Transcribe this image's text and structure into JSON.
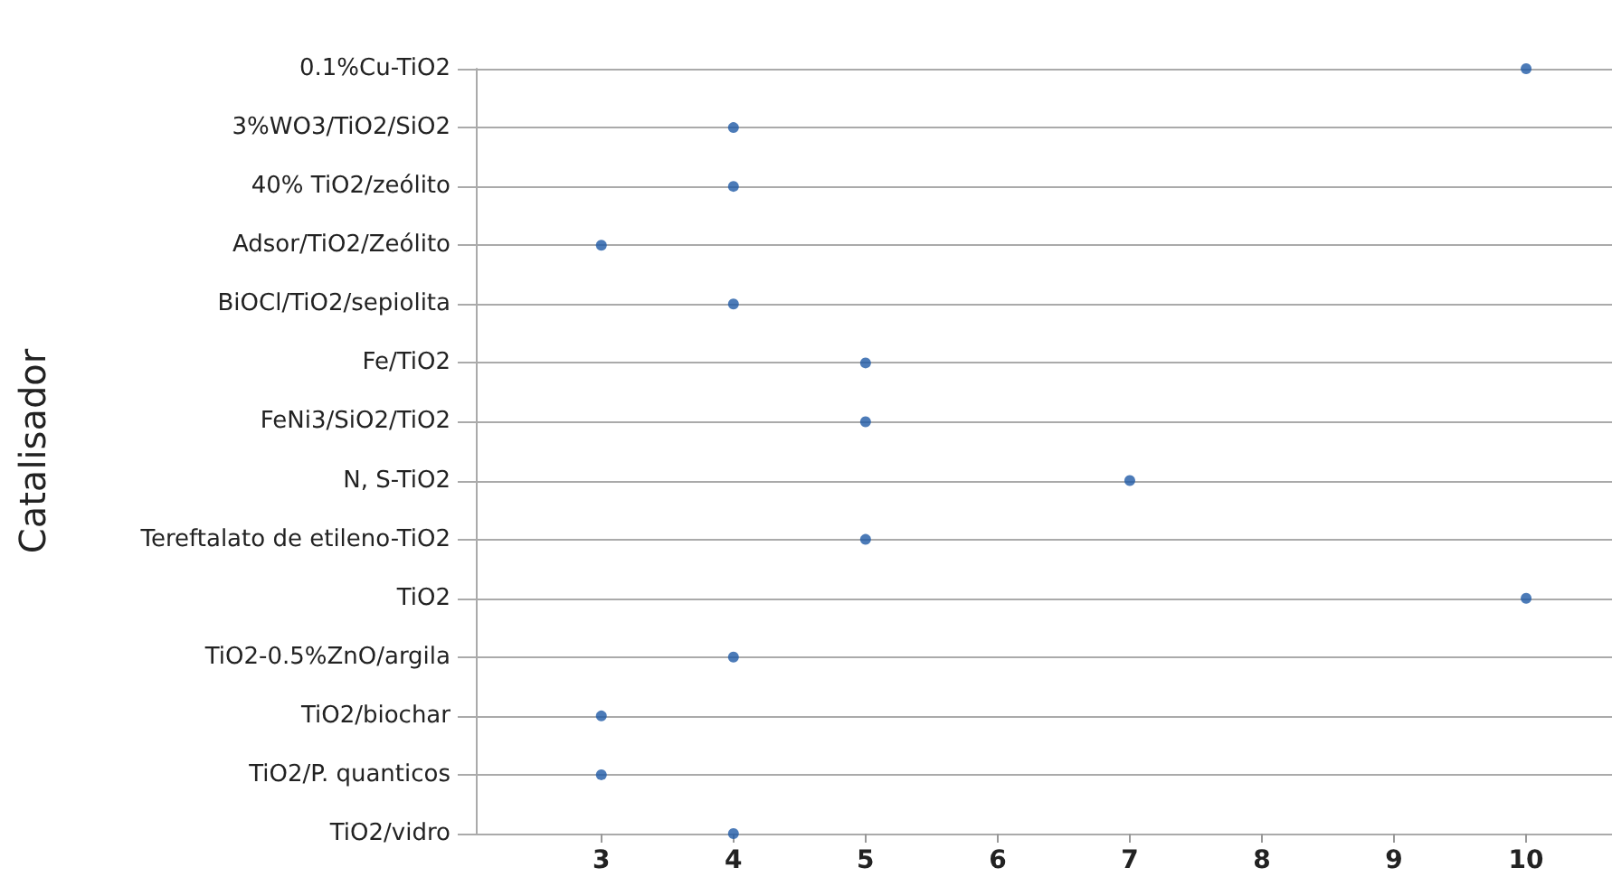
{
  "chart_data": {
    "type": "scatter",
    "orientation": "horizontal",
    "ylabel": "Catalisador",
    "categories": [
      "0.1%Cu-TiO2",
      "3%WO3/TiO2/SiO2",
      "40% TiO2/zeólito",
      "Adsor/TiO2/Zeólito",
      "BiOCl/TiO2/sepiolita",
      "Fe/TiO2",
      "FeNi3/SiO2/TiO2",
      "N, S-TiO2",
      "Tereftalato de etileno-TiO2",
      "TiO2",
      "TiO2-0.5%ZnO/argila",
      "TiO2/biochar",
      "TiO2/P. quanticos",
      "TiO2/vidro"
    ],
    "series": [
      {
        "color": "#1f5aa6",
        "values": [
          10,
          4,
          4,
          3,
          4,
          5,
          5,
          7,
          5,
          10,
          4,
          3,
          3,
          4
        ]
      }
    ],
    "xlim": [
      2.05,
      10.65
    ],
    "xticks": [
      3,
      4,
      5,
      6,
      7,
      8,
      9,
      10
    ],
    "grid": "y",
    "marker": "circle"
  }
}
